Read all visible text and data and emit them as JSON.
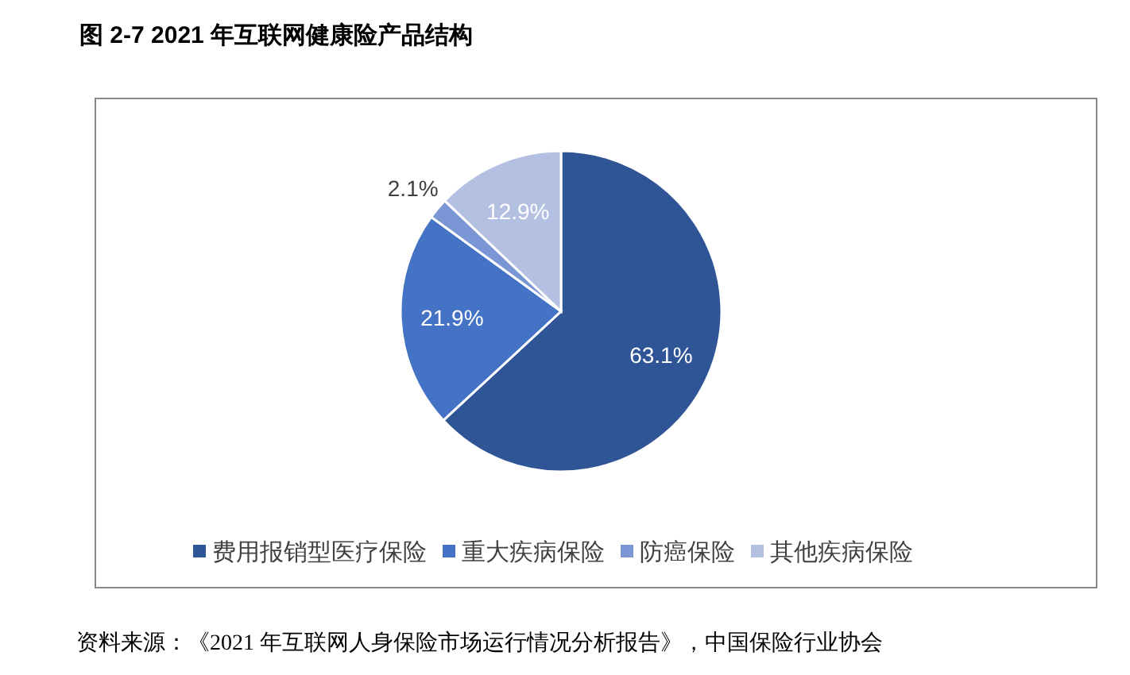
{
  "chart_data": {
    "type": "pie",
    "title": "图 2-7  2021 年互联网健康险产品结构",
    "categories": [
      "费用报销型医疗保险",
      "重大疾病保险",
      "防癌保险",
      "其他疾病保险"
    ],
    "values": [
      63.1,
      21.9,
      2.1,
      12.9
    ],
    "value_labels": [
      "63.1%",
      "21.9%",
      "2.1%",
      "12.9%"
    ],
    "colors": [
      "#2f5597",
      "#4472c4",
      "#7b96d4",
      "#b4c0e2"
    ],
    "legend": "bottom",
    "annotations": [
      "资料来源：《2021 年互联网人身保险市场运行情况分析报告》，中国保险行业协会"
    ]
  }
}
